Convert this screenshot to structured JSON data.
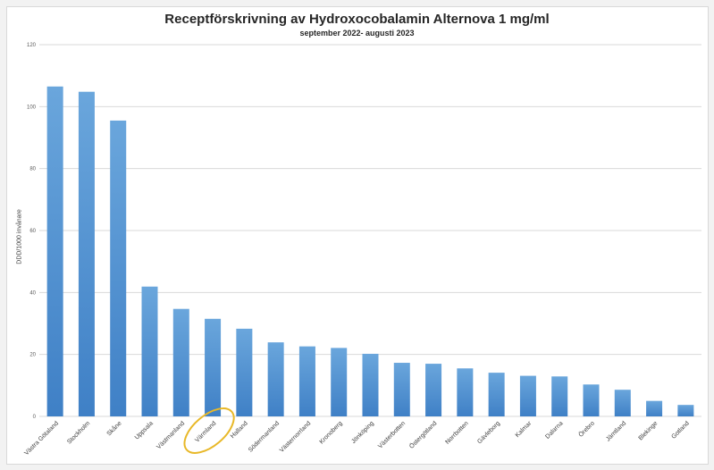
{
  "chart_data": {
    "type": "bar",
    "title": "Receptförskrivning av Hydroxocobalamin Alternova 1 mg/ml",
    "subtitle": "september 2022- augusti 2023",
    "xlabel": "",
    "ylabel": "DDD/1000 invånare",
    "ylim": [
      0,
      120
    ],
    "yticks": [
      0,
      20,
      40,
      60,
      80,
      100,
      120
    ],
    "grid": true,
    "legend": "none",
    "categories": [
      "Västra Götaland",
      "Stockholm",
      "Skåne",
      "Uppsala",
      "Västmanland",
      "Värmland",
      "Halland",
      "Södermanland",
      "Västernorrland",
      "Kronoberg",
      "Jönköping",
      "Västerbotten",
      "Östergötland",
      "Norrbotten",
      "Gävleborg",
      "Kalmar",
      "Dalarna",
      "Örebro",
      "Jämtland",
      "Blekinge",
      "Gotland"
    ],
    "values": [
      106.5,
      104.8,
      95.5,
      41.9,
      34.7,
      31.5,
      28.3,
      23.9,
      22.6,
      22.1,
      20.2,
      17.3,
      17.0,
      15.5,
      14.1,
      13.1,
      12.9,
      10.3,
      8.6,
      5.0,
      3.7
    ],
    "annotations": [
      {
        "type": "ellipse",
        "target": "Värmland",
        "color": "#e8b828"
      }
    ],
    "colors": {
      "bar": "#5b9bd5",
      "bar_dark": "#3f7fc4",
      "grid": "#d9d9d9",
      "highlight": "#e8b828"
    }
  }
}
